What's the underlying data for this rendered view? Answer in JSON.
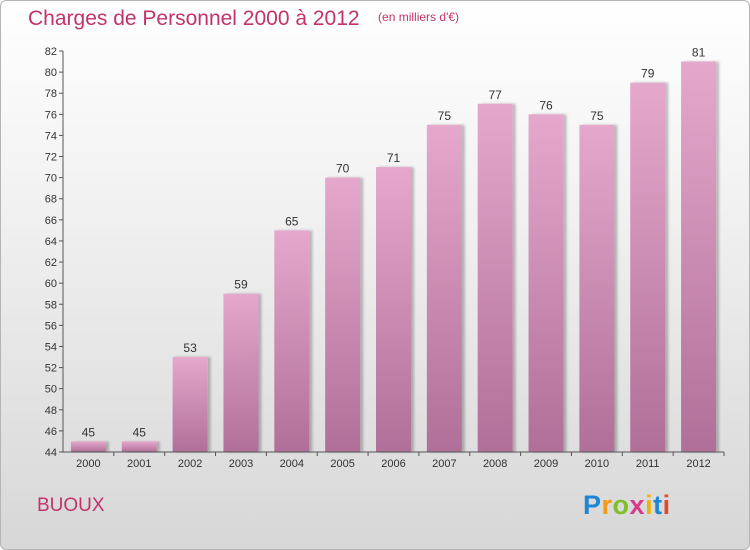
{
  "title": "Charges de Personnel 2000 à 2012",
  "subtitle": "(en milliers d'€)",
  "commune": "BUOUX",
  "logo": {
    "p": "P",
    "r": "r",
    "o": "o",
    "x": "x",
    "i1": "i",
    "t": "t",
    "i2": "i"
  },
  "colors": {
    "accent": "#c2336b",
    "bar_top": "#e5a8cc",
    "bar_bottom": "#b06f98"
  },
  "chart_data": {
    "type": "bar",
    "categories": [
      "2000",
      "2001",
      "2002",
      "2003",
      "2004",
      "2005",
      "2006",
      "2007",
      "2008",
      "2009",
      "2010",
      "2011",
      "2012"
    ],
    "values": [
      45,
      45,
      53,
      59,
      65,
      70,
      71,
      75,
      77,
      76,
      75,
      79,
      81
    ],
    "ylim": [
      44,
      82
    ],
    "yticks": [
      44,
      46,
      48,
      50,
      52,
      54,
      56,
      58,
      60,
      62,
      64,
      66,
      68,
      70,
      72,
      74,
      76,
      78,
      80,
      82
    ],
    "data_labels": true,
    "grid": false,
    "legend": "none"
  }
}
